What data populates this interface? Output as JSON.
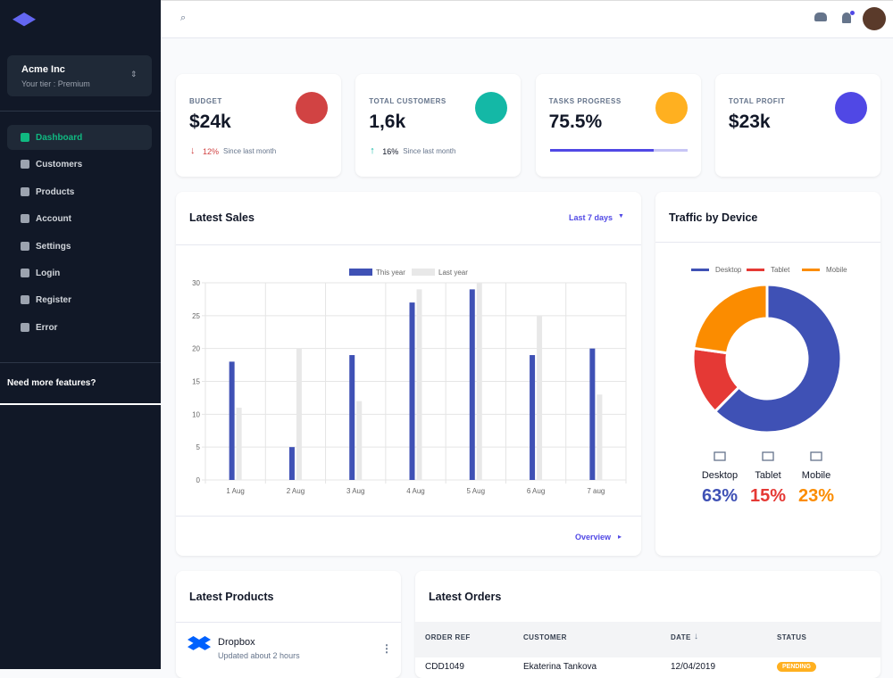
{
  "sidebar": {
    "org": "Acme Inc",
    "tier": "Your tier : Premium",
    "nav": [
      "Dashboard",
      "Customers",
      "Products",
      "Account",
      "Settings",
      "Login",
      "Register",
      "Error"
    ],
    "footer": "Need more features?"
  },
  "cards": [
    {
      "label": "BUDGET",
      "value": "$24k",
      "change": "12%",
      "note": "Since last month"
    },
    {
      "label": "TOTAL CUSTOMERS",
      "value": "1,6k",
      "change": "16%",
      "note": "Since last month"
    },
    {
      "label": "TASKS PROGRESS",
      "value": "75.5%",
      "progress": 75.5
    },
    {
      "label": "TOTAL PROFIT",
      "value": "$23k"
    }
  ],
  "chart_data": [
    {
      "type": "bar",
      "title": "Latest Sales",
      "filter": "Last 7 days",
      "footer": "Overview",
      "categories": [
        "1 Aug",
        "2 Aug",
        "3 Aug",
        "4 Aug",
        "5 Aug",
        "6 Aug",
        "7 aug"
      ],
      "series": [
        {
          "name": "This year",
          "color": "#3f51b5",
          "values": [
            18,
            5,
            19,
            27,
            29,
            19,
            20
          ]
        },
        {
          "name": "Last year",
          "color": "#e8e8e8",
          "values": [
            11,
            20,
            12,
            29,
            30,
            25,
            13
          ]
        }
      ],
      "ylim": [
        0,
        30
      ],
      "yticks": [
        0,
        5,
        10,
        15,
        20,
        25,
        30
      ],
      "grid": true
    },
    {
      "type": "doughnut",
      "title": "Traffic by Device",
      "categories": [
        "Desktop",
        "Tablet",
        "Mobile"
      ],
      "values": [
        63,
        15,
        23
      ],
      "value_labels": [
        "63%",
        "15%",
        "23%"
      ],
      "colors": [
        "#3f51b5",
        "#e53935",
        "#fb8c00"
      ]
    }
  ],
  "products": {
    "title": "Latest Products",
    "items": [
      {
        "name": "Dropbox",
        "updated": "Updated about 2 hours"
      }
    ]
  },
  "orders": {
    "title": "Latest Orders",
    "columns": [
      "ORDER REF",
      "CUSTOMER",
      "DATE",
      "STATUS"
    ],
    "rows": [
      [
        "CDD1049",
        "Ekaterina Tankova",
        "12/04/2019",
        "PENDING"
      ]
    ]
  }
}
